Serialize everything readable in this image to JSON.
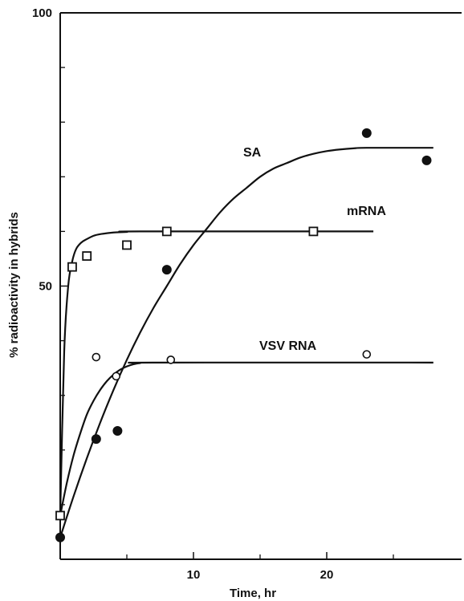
{
  "chart_data": {
    "type": "scatter",
    "title": "",
    "xlabel": "Time, hr",
    "ylabel": "% radioactivity in hybrids",
    "xlim": [
      0,
      30
    ],
    "ylim": [
      0,
      100
    ],
    "x_ticks": [
      10,
      20
    ],
    "y_ticks": [
      50,
      100
    ],
    "x_minor_ticks": [
      5,
      15,
      25
    ],
    "y_minor_ticks": [
      10,
      20,
      30,
      40,
      60,
      70,
      80,
      90
    ],
    "grid": false,
    "series": [
      {
        "name": "SA",
        "marker": "filled-circle",
        "points": [
          [
            0,
            4
          ],
          [
            2.7,
            22
          ],
          [
            4.3,
            23.5
          ],
          [
            8,
            53
          ],
          [
            23,
            78
          ],
          [
            27.5,
            73
          ]
        ],
        "curve": [
          [
            0,
            4
          ],
          [
            1,
            11.5
          ],
          [
            2,
            18.5
          ],
          [
            3,
            25
          ],
          [
            4,
            31
          ],
          [
            5,
            36.5
          ],
          [
            6,
            41.5
          ],
          [
            7,
            46
          ],
          [
            8,
            50
          ],
          [
            9,
            54
          ],
          [
            10,
            57.5
          ],
          [
            11,
            60.5
          ],
          [
            12,
            63.5
          ],
          [
            13,
            66
          ],
          [
            14,
            68
          ],
          [
            15,
            70
          ],
          [
            16,
            71.5
          ],
          [
            17,
            72.5
          ],
          [
            18,
            73.5
          ],
          [
            19,
            74.2
          ],
          [
            20,
            74.7
          ],
          [
            21,
            75
          ],
          [
            22,
            75.2
          ],
          [
            23,
            75.3
          ],
          [
            28,
            75.3
          ]
        ]
      },
      {
        "name": "mRNA",
        "marker": "open-square",
        "points": [
          [
            0,
            8
          ],
          [
            0.9,
            53.5
          ],
          [
            2,
            55.5
          ],
          [
            5,
            57.5
          ],
          [
            8,
            60
          ],
          [
            19,
            60
          ]
        ],
        "curve": [
          [
            0,
            8
          ],
          [
            0.3,
            38
          ],
          [
            0.6,
            50
          ],
          [
            0.9,
            54.5
          ],
          [
            1.2,
            56.8
          ],
          [
            1.6,
            58
          ],
          [
            2,
            58.6
          ],
          [
            2.5,
            59.2
          ],
          [
            3,
            59.5
          ],
          [
            4,
            59.8
          ],
          [
            5,
            59.9
          ],
          [
            6,
            60
          ],
          [
            23.5,
            60
          ]
        ]
      },
      {
        "name": "VSV RNA",
        "marker": "open-circle",
        "points": [
          [
            2.7,
            37
          ],
          [
            4.2,
            33.5
          ],
          [
            8.3,
            36.5
          ],
          [
            23,
            37.5
          ]
        ],
        "curve": [
          [
            0,
            8
          ],
          [
            0.5,
            14
          ],
          [
            1,
            19
          ],
          [
            1.5,
            23
          ],
          [
            2,
            26.5
          ],
          [
            2.5,
            29
          ],
          [
            3,
            31
          ],
          [
            3.5,
            32.6
          ],
          [
            4,
            33.8
          ],
          [
            4.5,
            34.7
          ],
          [
            5,
            35.3
          ],
          [
            5.5,
            35.7
          ],
          [
            6,
            35.9
          ],
          [
            7,
            36
          ],
          [
            28,
            36
          ]
        ]
      }
    ],
    "annotations": [
      {
        "text": "SA",
        "series": 0
      },
      {
        "text": "mRNA",
        "series": 1
      },
      {
        "text": "VSV RNA",
        "series": 2
      }
    ]
  }
}
